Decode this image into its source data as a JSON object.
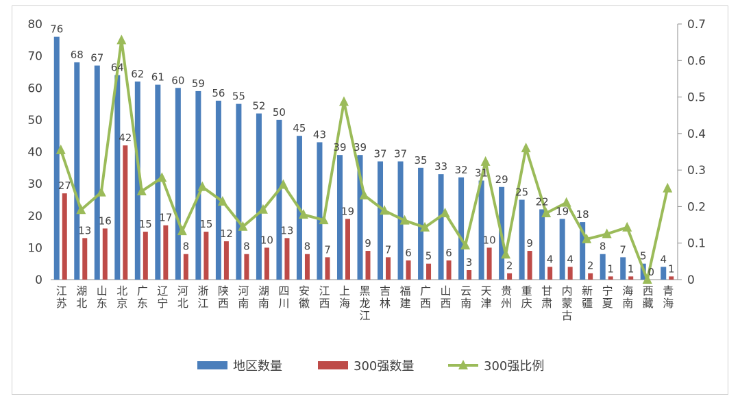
{
  "chart_data": {
    "type": "bar",
    "categories": [
      "江苏",
      "湖北",
      "山东",
      "北京",
      "广东",
      "辽宁",
      "河北",
      "浙江",
      "陕西",
      "河南",
      "湖南",
      "四川",
      "安徽",
      "江西",
      "上海",
      "黑龙江",
      "吉林",
      "福建",
      "广西",
      "山西",
      "云南",
      "天津",
      "贵州",
      "重庆",
      "甘肃",
      "内蒙古",
      "新疆",
      "宁夏",
      "海南",
      "西藏",
      "青海"
    ],
    "series": [
      {
        "name": "地区数量",
        "type": "bar",
        "axis": "left",
        "color": "#4a7ebb",
        "values": [
          76,
          68,
          67,
          64,
          62,
          61,
          60,
          59,
          56,
          55,
          52,
          50,
          45,
          43,
          39,
          39,
          37,
          37,
          35,
          33,
          32,
          31,
          29,
          25,
          22,
          19,
          18,
          8,
          7,
          5,
          4
        ]
      },
      {
        "name": "300强数量",
        "type": "bar",
        "axis": "left",
        "color": "#be4b48",
        "values": [
          27,
          13,
          16,
          42,
          15,
          17,
          8,
          15,
          12,
          8,
          10,
          13,
          8,
          7,
          19,
          9,
          7,
          6,
          5,
          6,
          3,
          10,
          2,
          9,
          4,
          4,
          2,
          1,
          1,
          0,
          1
        ]
      },
      {
        "name": "300强比例",
        "type": "line",
        "axis": "right",
        "color": "#9bbb59",
        "values": [
          0.355,
          0.191,
          0.239,
          0.656,
          0.242,
          0.279,
          0.133,
          0.254,
          0.214,
          0.145,
          0.192,
          0.26,
          0.178,
          0.163,
          0.487,
          0.231,
          0.189,
          0.162,
          0.143,
          0.182,
          0.094,
          0.323,
          0.069,
          0.36,
          0.182,
          0.211,
          0.111,
          0.125,
          0.143,
          0.0,
          0.25
        ]
      }
    ],
    "data_labels": {
      "bars_left": [
        "76",
        "68",
        "67",
        "64",
        "62",
        "61",
        "60",
        "59",
        "56",
        "55",
        "52",
        "50",
        "45",
        "43",
        "39",
        "39",
        "37",
        "37",
        "35",
        "33",
        "32",
        "31",
        "29",
        "25",
        "22",
        "19",
        "18",
        "8",
        "7",
        "5",
        "4"
      ],
      "bars_right": [
        "27",
        "13",
        "16",
        "42",
        "15",
        "17",
        "8",
        "15",
        "12",
        "8",
        "10",
        "13",
        "8",
        "7",
        "19",
        "9",
        "7",
        "6",
        "5",
        "6",
        "3",
        "10",
        "2",
        "9",
        "4",
        "4",
        "2",
        "1",
        "1",
        "0",
        "1"
      ]
    },
    "y_left": {
      "min": 0,
      "max": 80,
      "ticks": [
        "0",
        "10",
        "20",
        "30",
        "40",
        "50",
        "60",
        "70",
        "80"
      ]
    },
    "y_right": {
      "min": 0,
      "max": 0.7,
      "ticks": [
        "0",
        "0.1",
        "0.2",
        "0.3",
        "0.4",
        "0.5",
        "0.6",
        "0.7"
      ]
    },
    "legend": {
      "position": "bottom",
      "items": [
        "地区数量",
        "300强数量",
        "300强比例"
      ]
    },
    "grid": false
  }
}
